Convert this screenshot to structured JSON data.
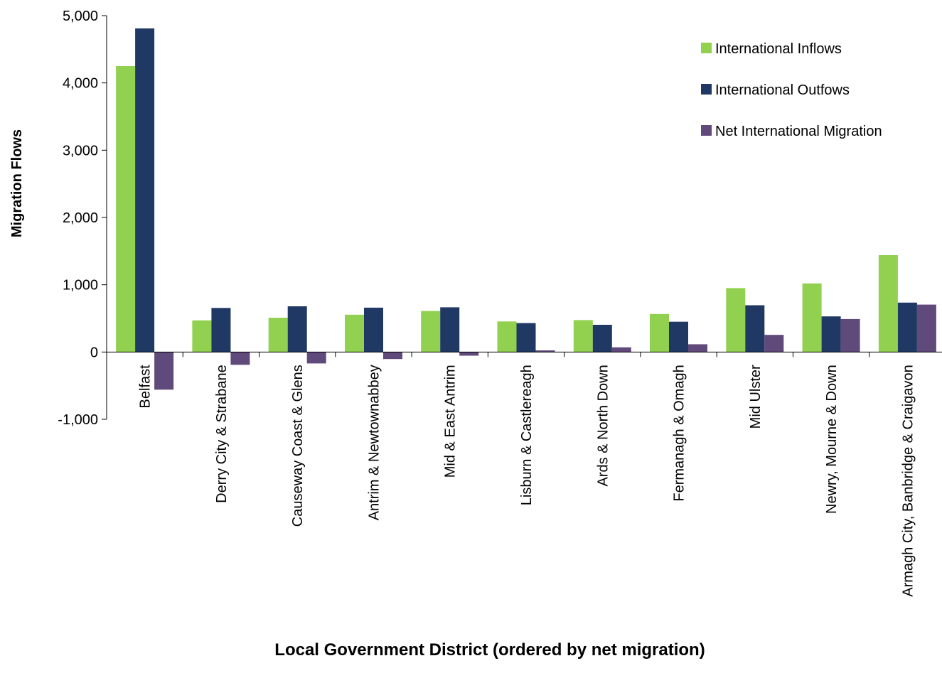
{
  "chart_data": {
    "type": "bar",
    "xlabel": "Local Government District (ordered by net migration)",
    "ylabel": "Migration Flows",
    "ylim": [
      -1000,
      5000
    ],
    "yticks": [
      -1000,
      0,
      1000,
      2000,
      3000,
      4000,
      5000
    ],
    "ytick_labels": [
      "-1,000",
      "0",
      "1,000",
      "2,000",
      "3,000",
      "4,000",
      "5,000"
    ],
    "grid": false,
    "legend_position": "top-right",
    "categories": [
      "Belfast",
      "Derry City & Strabane",
      "Causeway Coast & Glens",
      "Antrim & Newtownabbey",
      "Mid & East Antrim",
      "Lisburn & Castlereagh",
      "Ards & North Down",
      "Fermanagh & Omagh",
      "Mid Ulster",
      "Newry, Mourne & Down",
      "Armagh City, Banbridge & Craigavon"
    ],
    "series": [
      {
        "name": "International Inflows",
        "color": "#92d050",
        "values": [
          4250,
          470,
          510,
          555,
          610,
          455,
          475,
          565,
          950,
          1020,
          1440
        ]
      },
      {
        "name": "International Outfows",
        "color": "#1f3864",
        "values": [
          4810,
          655,
          680,
          660,
          665,
          430,
          405,
          450,
          695,
          530,
          735
        ]
      },
      {
        "name": "Net International Migration",
        "color": "#604a7b",
        "values": [
          -560,
          -190,
          -170,
          -105,
          -55,
          25,
          70,
          115,
          255,
          490,
          705
        ]
      }
    ]
  }
}
